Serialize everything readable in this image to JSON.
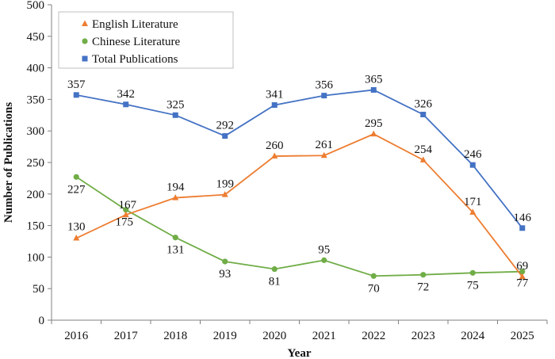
{
  "chart_data": {
    "type": "line",
    "title": "",
    "xlabel": "Year",
    "ylabel": "Number of Publications",
    "x": [
      "2016",
      "2017",
      "2018",
      "2019",
      "2020",
      "2021",
      "2022",
      "2023",
      "2024",
      "2025"
    ],
    "ylim": [
      0,
      500
    ],
    "yticks": [
      0,
      50,
      100,
      150,
      200,
      250,
      300,
      350,
      400,
      450,
      500
    ],
    "grid": false,
    "legend_position": "top-left",
    "series": [
      {
        "name": "English Literature",
        "marker": "triangle",
        "color": "#ED7D31",
        "values": [
          130,
          167,
          194,
          199,
          260,
          261,
          295,
          254,
          171,
          69
        ]
      },
      {
        "name": "Chinese Literature",
        "marker": "circle",
        "color": "#70AD47",
        "values": [
          227,
          175,
          131,
          93,
          81,
          95,
          70,
          72,
          75,
          77
        ]
      },
      {
        "name": "Total Publications",
        "marker": "square",
        "color": "#4472C4",
        "values": [
          357,
          342,
          325,
          292,
          341,
          356,
          365,
          326,
          246,
          146
        ]
      }
    ]
  }
}
